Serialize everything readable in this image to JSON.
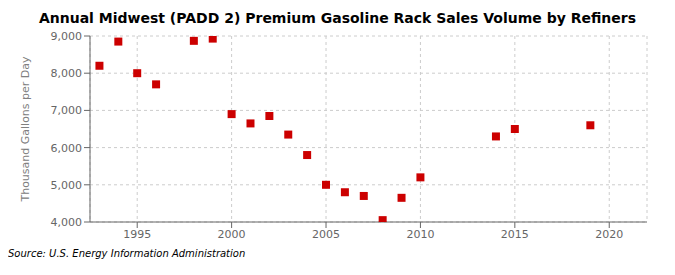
{
  "chart_data": {
    "type": "scatter",
    "title": "Annual Midwest (PADD 2) Premium Gasoline Rack Sales Volume by Refiners",
    "ylabel": "Thousand Gallons per Day",
    "annotations": [
      "Source: U.S. Energy Information Administration"
    ],
    "x": [
      1993,
      1994,
      1995,
      1996,
      1998,
      1999,
      2000,
      2001,
      2002,
      2003,
      2004,
      2005,
      2006,
      2007,
      2008,
      2009,
      2010,
      2014,
      2015,
      2019
    ],
    "values": [
      8200,
      8850,
      8000,
      7700,
      8870,
      8930,
      6900,
      6650,
      6850,
      6350,
      5800,
      5000,
      4800,
      4700,
      4050,
      4650,
      5200,
      6300,
      6500,
      6600
    ],
    "color": "#cc0000",
    "marker": "square",
    "xlim": [
      1992.5,
      2022
    ],
    "ylim": [
      4000,
      9000
    ],
    "xticks": [
      1995,
      2000,
      2005,
      2010,
      2015,
      2020
    ],
    "yticks": [
      {
        "value": 4000,
        "label": "4,000"
      },
      {
        "value": 5000,
        "label": "5,000"
      },
      {
        "value": 6000,
        "label": "6,000"
      },
      {
        "value": 7000,
        "label": "7,000"
      },
      {
        "value": 8000,
        "label": "8,000"
      },
      {
        "value": 9000,
        "label": "9,000"
      }
    ],
    "grid": true
  }
}
